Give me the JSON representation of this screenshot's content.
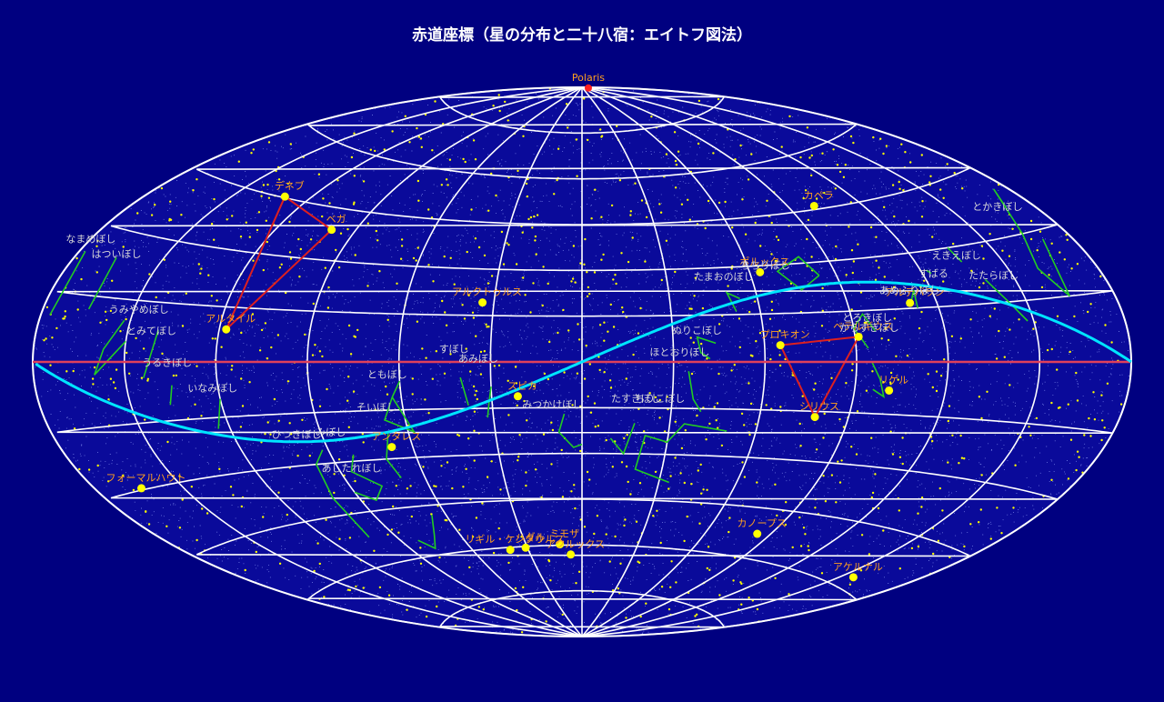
{
  "title": "赤道座標（星の分布と二十八宿：エイトフ図法）",
  "colors": {
    "background": "#000080",
    "grid": "#ffffff",
    "ecliptic": "#00e5ff",
    "equator": "#e0405a",
    "bright_star": "#ffff00",
    "bright_label": "#ffa020",
    "mansion_label": "#d8d8d8",
    "mansion_line": "#22cc22",
    "asterism_line": "#dd2020",
    "polaris": "#ff2020"
  },
  "map": {
    "projection": "Aitoff",
    "ra_gridlines_deg": [
      0,
      30,
      60,
      90,
      120,
      150,
      180
    ],
    "dec_gridlines_deg": [
      -75,
      -60,
      -45,
      -30,
      -15,
      0,
      15,
      30,
      45,
      60,
      75
    ],
    "center_ra_deg": 180,
    "ra_increases": "to the left",
    "equator_shown": true,
    "ecliptic_shown": true,
    "background_stars": "dense field of faint stars"
  },
  "polaris": {
    "name": "Polaris",
    "ra": 37.9,
    "dec": 89.3
  },
  "bright_stars": [
    {
      "name": "ベガ",
      "ra": 279.2,
      "dec": 38.8
    },
    {
      "name": "デネブ",
      "ra": 310.4,
      "dec": 45.3
    },
    {
      "name": "アルタイル",
      "ra": 297.7,
      "dec": 8.9
    },
    {
      "name": "アルクトゥルス",
      "ra": 213.9,
      "dec": 19.2
    },
    {
      "name": "スピカ",
      "ra": 201.3,
      "dec": -11.2
    },
    {
      "name": "アンタレス",
      "ra": 247.4,
      "dec": -26.4
    },
    {
      "name": "フォーマルハウト",
      "ra": 344.4,
      "dec": -29.6
    },
    {
      "name": "カペラ",
      "ra": 79.2,
      "dec": 46.0
    },
    {
      "name": "アルデバラン",
      "ra": 69.0,
      "dec": 16.5
    },
    {
      "name": "ベテルギウス",
      "ra": 88.8,
      "dec": 7.4
    },
    {
      "name": "リゲル",
      "ra": 78.6,
      "dec": -8.2
    },
    {
      "name": "ポルックス",
      "ra": 116.3,
      "dec": 28.0
    },
    {
      "name": "プロキオン",
      "ra": 114.8,
      "dec": 5.2
    },
    {
      "name": "シリウス",
      "ra": 101.3,
      "dec": -16.7
    },
    {
      "name": "カノープス",
      "ra": 96.0,
      "dec": -52.7
    },
    {
      "name": "アケルナル",
      "ra": 24.4,
      "dec": -57.2
    },
    {
      "name": "リギル・ケンタウルス",
      "ra": 219.9,
      "dec": -60.8
    },
    {
      "name": "ハダル",
      "ra": 210.96,
      "dec": -60.4
    },
    {
      "name": "ミモザ",
      "ra": 191.9,
      "dec": -59.7
    },
    {
      "name": "アクルックス",
      "ra": 186.6,
      "dec": -63.1
    }
  ],
  "asterisms": [
    {
      "stars": [
        "ベガ",
        "デネブ",
        "アルタイル"
      ]
    },
    {
      "stars": [
        "ベテルギウス",
        "プロキオン",
        "シリウス"
      ]
    }
  ],
  "mansions": [
    {
      "name": "すぼし",
      "lines": [
        [
          [
            220,
            -5
          ],
          [
            219,
            -9
          ],
          [
            218,
            -14
          ]
        ]
      ]
    },
    {
      "name": "あみぼし",
      "lines": [
        [
          [
            210,
            -8
          ],
          [
            211,
            -13
          ],
          [
            212,
            -18
          ]
        ]
      ]
    },
    {
      "name": "ともぼし",
      "lines": [
        [
          [
            240,
            -6
          ],
          [
            243,
            -11
          ],
          [
            247,
            -18
          ],
          [
            238,
            -22
          ],
          [
            243,
            -11
          ]
        ]
      ]
    },
    {
      "name": "そいぼし",
      "lines": [
        [
          [
            247,
            -22
          ],
          [
            251,
            -30
          ],
          [
            249,
            -36
          ]
        ]
      ]
    },
    {
      "name": "みぼし",
      "lines": [
        [
          [
            262,
            -28
          ],
          [
            266,
            -33
          ],
          [
            258,
            -38
          ],
          [
            264,
            -42
          ],
          [
            270,
            -39
          ]
        ]
      ]
    },
    {
      "name": "みつかけぼし",
      "lines": [
        [
          [
            186,
            -17
          ],
          [
            188,
            -23
          ],
          [
            183,
            -28
          ],
          [
            180,
            -27
          ]
        ]
      ]
    },
    {
      "name": "あしたれぼし",
      "lines": [
        [
          [
            246,
            -48
          ],
          [
            252,
            -54
          ],
          [
            258,
            -58
          ],
          [
            262,
            -55
          ]
        ]
      ]
    },
    {
      "name": "ひつきぼし",
      "lines": [
        [
          [
            272,
            -26
          ],
          [
            277,
            -30
          ],
          [
            280,
            -40
          ],
          [
            282,
            -52
          ]
        ]
      ]
    },
    {
      "name": "いなみぼし",
      "lines": [
        [
          [
            300,
            -10
          ],
          [
            304,
            -18
          ]
        ]
      ]
    },
    {
      "name": "うるきぼし",
      "lines": [
        [
          [
            315,
            -6
          ],
          [
            317,
            -11
          ]
        ]
      ]
    },
    {
      "name": "とみてぼし",
      "lines": [
        [
          [
            320,
            8
          ],
          [
            324,
            -4
          ]
        ]
      ]
    },
    {
      "name": "うみやめぼし",
      "lines": [
        [
          [
            330,
            5
          ],
          [
            340,
            -3
          ],
          [
            337,
            3
          ],
          [
            332,
            10
          ]
        ]
      ]
    },
    {
      "name": "はついぼし",
      "lines": [
        [
          [
            345,
            12
          ],
          [
            346,
            24
          ]
        ]
      ]
    },
    {
      "name": "なまめぼし",
      "lines": [
        [
          [
            357,
            10
          ],
          [
            358,
            24
          ]
        ]
      ]
    },
    {
      "name": "とかきぼし",
      "lines": [
        [
          [
            10,
            36
          ],
          [
            5,
            40
          ],
          [
            15,
            30
          ],
          [
            20,
            22
          ],
          [
            15,
            15
          ],
          [
            10,
            28
          ]
        ]
      ]
    },
    {
      "name": "たたらぼし",
      "lines": [
        [
          [
            40,
            21
          ],
          [
            36,
            15
          ],
          [
            32,
            10
          ]
        ]
      ]
    },
    {
      "name": "えきえぼし",
      "lines": [
        [
          [
            44,
            26
          ],
          [
            45,
            30
          ]
        ]
      ]
    },
    {
      "name": "すばる",
      "lines": [
        [
          [
            57,
            24
          ],
          [
            58,
            25
          ]
        ]
      ]
    },
    {
      "name": "あめふりぼし",
      "lines": [
        [
          [
            67,
            15
          ],
          [
            66,
            20
          ],
          [
            69,
            16
          ]
        ]
      ]
    },
    {
      "name": "とろきぼし",
      "lines": [
        [
          [
            83,
            9
          ],
          [
            86,
            14
          ],
          [
            90,
            10
          ],
          [
            86,
            4
          ]
        ]
      ]
    },
    {
      "name": "からすきぼし",
      "lines": [
        [
          [
            85,
            0
          ],
          [
            82,
            -5
          ],
          [
            80,
            -10
          ],
          [
            84,
            -8
          ]
        ]
      ]
    },
    {
      "name": "ちちりぼし",
      "lines": [
        [
          [
            96,
            26
          ],
          [
            104,
            22
          ],
          [
            110,
            28
          ],
          [
            100,
            32
          ],
          [
            96,
            26
          ]
        ]
      ]
    },
    {
      "name": "たまおのぼし",
      "lines": [
        [
          [
            126,
            20
          ],
          [
            130,
            22
          ],
          [
            128,
            16
          ]
        ]
      ]
    },
    {
      "name": "ぬりこぼし",
      "lines": [
        [
          [
            136,
            6
          ],
          [
            142,
            8
          ],
          [
            141,
            3
          ],
          [
            138,
            1
          ]
        ]
      ]
    },
    {
      "name": "ほとおりぼし",
      "lines": [
        [
          [
            145,
            -3
          ],
          [
            143,
            -12
          ],
          [
            140,
            -16
          ]
        ]
      ]
    },
    {
      "name": "ちりこぼし",
      "lines": [
        [
          [
            130,
            -22
          ],
          [
            145,
            -20
          ],
          [
            150,
            -26
          ],
          [
            158,
            -24
          ],
          [
            160,
            -35
          ],
          [
            146,
            -39
          ]
        ]
      ]
    },
    {
      "name": "たすきぼし",
      "lines": [
        [
          [
            162,
            -20
          ],
          [
            165,
            -30
          ],
          [
            170,
            -25
          ]
        ]
      ]
    }
  ],
  "mansion_labels": [
    {
      "text": "すぼし",
      "ra": 222,
      "dec": 3
    },
    {
      "text": "あみぼし",
      "ra": 214,
      "dec": 0
    },
    {
      "text": "ともぼし",
      "ra": 244,
      "dec": -5
    },
    {
      "text": "そいぼし",
      "ra": 249,
      "dec": -15
    },
    {
      "text": "みつかけぼし",
      "ra": 190,
      "dec": -15
    },
    {
      "text": "みぼし",
      "ra": 267,
      "dec": -22
    },
    {
      "text": "あしたれぼし",
      "ra": 266,
      "dec": -33
    },
    {
      "text": "ひつきぼし",
      "ra": 279,
      "dec": -22
    },
    {
      "text": "いなみぼし",
      "ra": 302,
      "dec": -8
    },
    {
      "text": "うるきぼし",
      "ra": 316,
      "dec": -1
    },
    {
      "text": "とみてぼし",
      "ra": 322,
      "dec": 7
    },
    {
      "text": "うみやめぼし",
      "ra": 328,
      "dec": 12
    },
    {
      "text": "はついぼし",
      "ra": 346,
      "dec": 24
    },
    {
      "text": "なまめぼし",
      "ra": 359,
      "dec": 26
    },
    {
      "text": "とかきぼし",
      "ra": 14,
      "dec": 36
    },
    {
      "text": "たたらぼし",
      "ra": 37,
      "dec": 21
    },
    {
      "text": "えきえぼし",
      "ra": 45,
      "dec": 27
    },
    {
      "text": "すばる",
      "ra": 57,
      "dec": 23
    },
    {
      "text": "あめふりぼし",
      "ra": 68,
      "dec": 19
    },
    {
      "text": "とろきぼし",
      "ra": 85,
      "dec": 12
    },
    {
      "text": "からすきぼし",
      "ra": 85,
      "dec": 9
    },
    {
      "text": "ちちりぼし",
      "ra": 114,
      "dec": 29
    },
    {
      "text": "たまおのぼし",
      "ra": 130,
      "dec": 26
    },
    {
      "text": "ぬりこぼし",
      "ra": 142,
      "dec": 9
    },
    {
      "text": "ほとおりぼし",
      "ra": 148,
      "dec": 2
    },
    {
      "text": "ちりこぼし",
      "ra": 154,
      "dec": -13
    },
    {
      "text": "たすきぼし",
      "ra": 162,
      "dec": -13
    }
  ]
}
